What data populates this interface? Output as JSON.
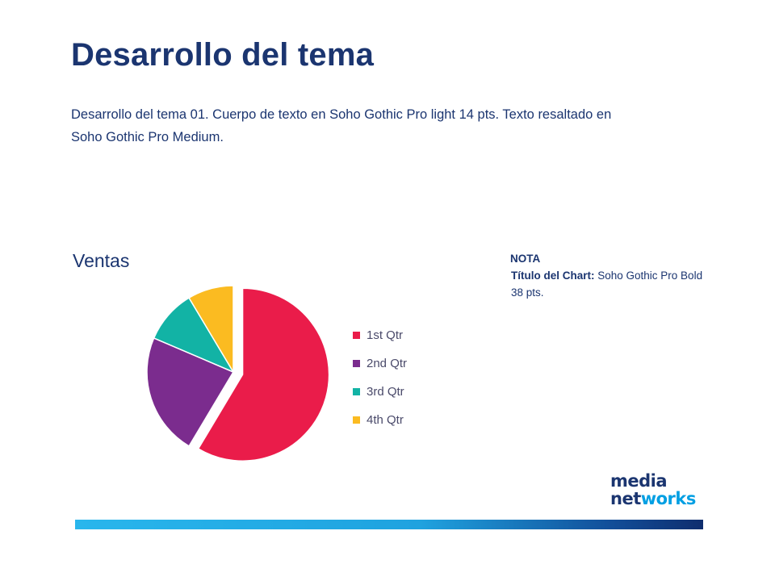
{
  "slide": {
    "title": "Desarrollo del tema",
    "body_line1": "Desarrollo del tema 01. Cuerpo de texto en Soho Gothic Pro light 14 pts. Texto resaltado en",
    "body_line2": "Soho Gothic Pro Medium."
  },
  "note": {
    "heading": "NOTA",
    "key": "Título del Chart:",
    "text": " Soho Gothic Pro Bold  38 pts."
  },
  "logo": {
    "line1": "media",
    "line2_a": "net",
    "line2_b": "works"
  },
  "chart_data": {
    "type": "pie",
    "title": "Ventas",
    "categories": [
      "1st Qtr",
      "2nd Qtr",
      "3rd Qtr",
      "4th Qtr"
    ],
    "values": [
      8.2,
      3.2,
      1.4,
      1.2
    ],
    "colors": [
      "#ea1c4a",
      "#7b2c8e",
      "#12b3a5",
      "#fbbb21"
    ],
    "exploded": "1st Qtr",
    "legend": "right"
  }
}
